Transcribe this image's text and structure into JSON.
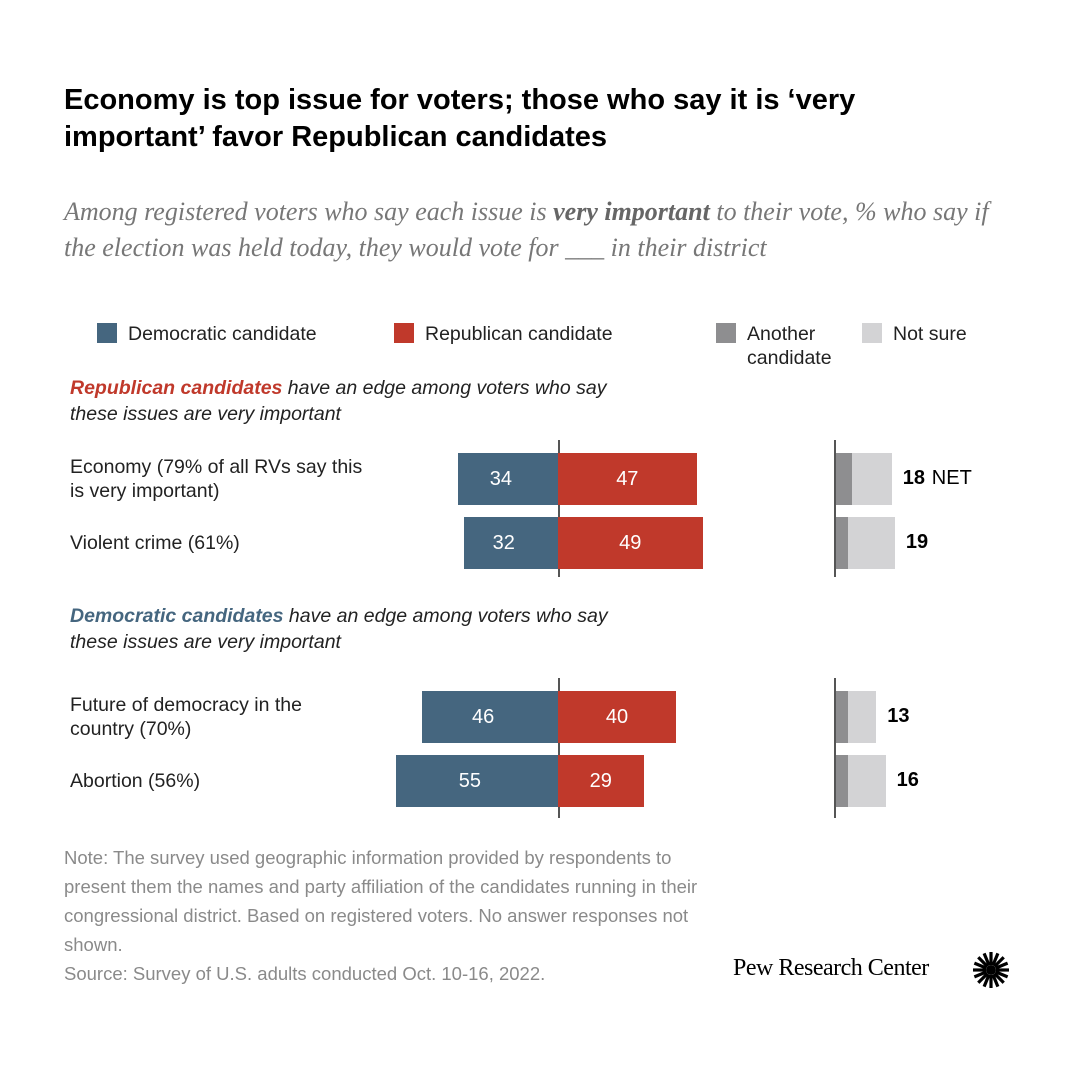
{
  "title": "Economy is top issue for voters; those who say it is ‘very important’ favor Republican candidates",
  "subtitle": {
    "pre": "Among registered voters who say each issue is ",
    "emph": "very important",
    "post": " to their vote,  % who say if the election was held today, they would vote for ___ in their district"
  },
  "legend": [
    {
      "label": "Democratic candidate",
      "color": "#45667f"
    },
    {
      "label": "Republican candidate",
      "color": "#c0392b"
    },
    {
      "label": "Another candidate",
      "color": "#8e8e90"
    },
    {
      "label": "Not sure",
      "color": "#d3d3d5"
    }
  ],
  "groups": [
    {
      "header_emph": "Republican candidates",
      "header_rest": " have an edge among voters who say these issues are very important",
      "color": "#c0392b"
    },
    {
      "header_emph": "Democratic candidates",
      "header_rest": " have an edge among voters who say these issues are very important",
      "color": "#45667f"
    }
  ],
  "chart_data": {
    "type": "bar",
    "categories": [
      "Economy (79% of all RVs say this is very important)",
      "Violent crime (61%)",
      "Future of democracy in the country (70%)",
      "Abortion (56%)"
    ],
    "series": [
      {
        "name": "Democratic candidate",
        "values": [
          34,
          32,
          46,
          55
        ]
      },
      {
        "name": "Republican candidate",
        "values": [
          47,
          49,
          40,
          29
        ]
      },
      {
        "name": "Another candidate",
        "values": [
          5,
          4,
          4,
          4
        ]
      },
      {
        "name": "Not sure",
        "values": [
          13,
          15,
          9,
          12
        ]
      }
    ],
    "net_labels": [
      "18",
      "19",
      "13",
      "16"
    ],
    "net_suffix": "NET"
  },
  "note": "Note: The survey used geographic information provided by respondents to present them the names and party affiliation of the candidates running in their congressional district. Based on registered voters. No answer responses not shown.",
  "source": "Source: Survey of U.S. adults conducted Oct. 10-16, 2022.",
  "logo": "Pew Research Center"
}
